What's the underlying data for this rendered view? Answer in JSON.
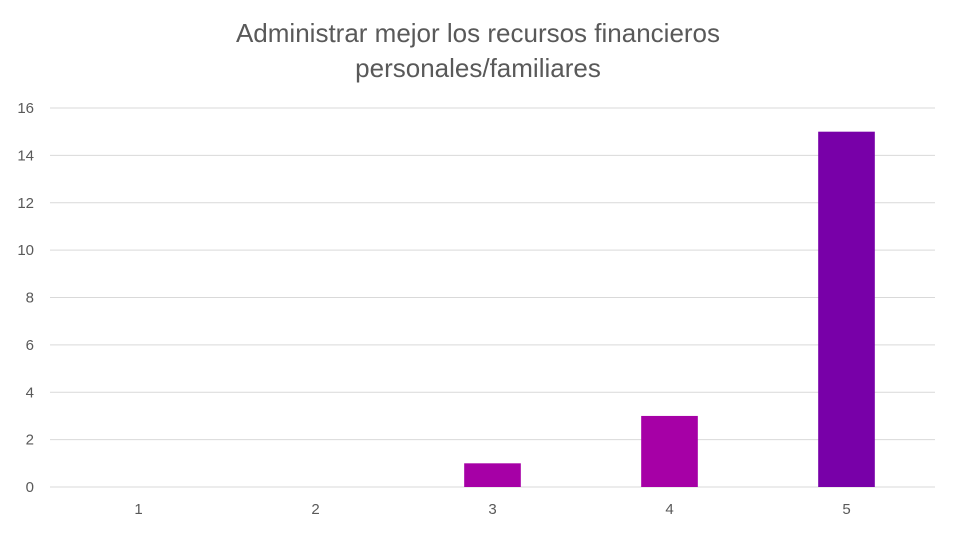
{
  "chart_data": {
    "type": "bar",
    "title_lines": [
      "Administrar mejor los recursos financieros",
      "personales/familiares"
    ],
    "categories": [
      "1",
      "2",
      "3",
      "4",
      "5"
    ],
    "values": [
      0,
      0,
      1,
      3,
      15
    ],
    "bar_colors": [
      "#a600a6",
      "#a600a6",
      "#a600a6",
      "#a600a6",
      "#7800a8"
    ],
    "ylim": [
      0,
      16
    ],
    "yticks": [
      0,
      2,
      4,
      6,
      8,
      10,
      12,
      14,
      16
    ],
    "xlabel": "",
    "ylabel": "",
    "grid": true,
    "legend": "none"
  }
}
